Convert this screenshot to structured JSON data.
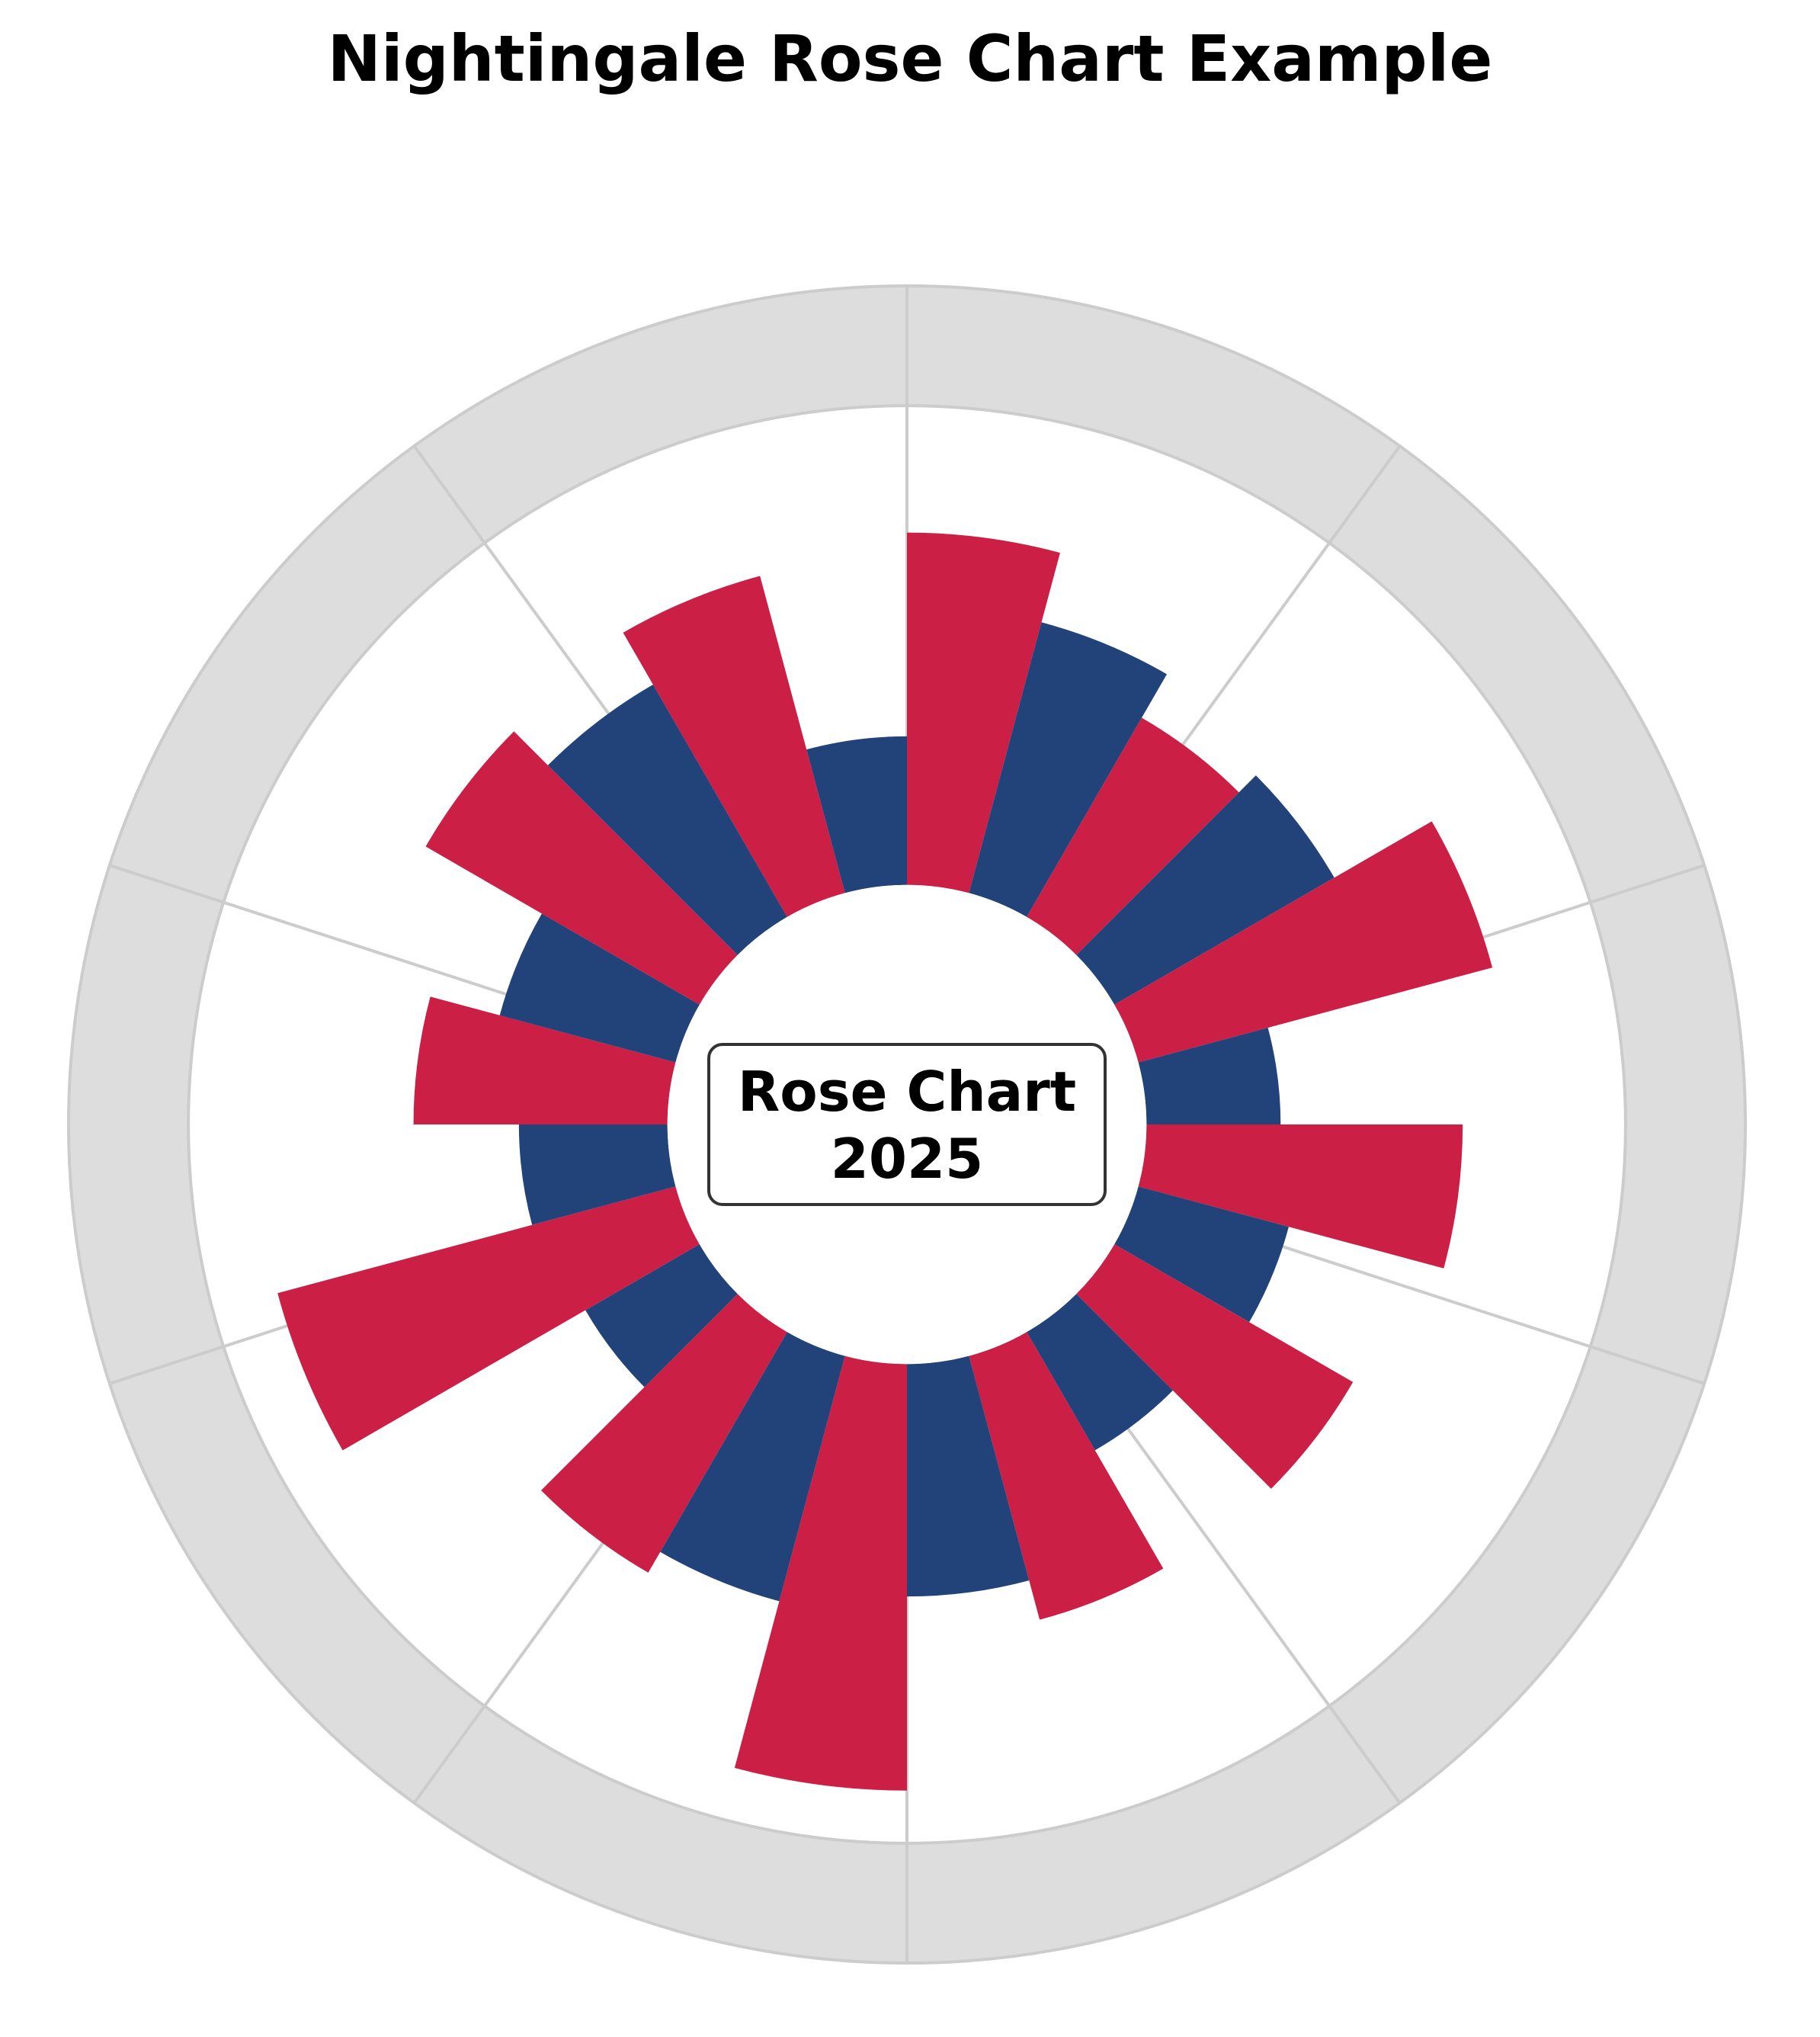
{
  "chart_data": {
    "type": "rose",
    "title": "Nightingale Rose Chart Example",
    "center_label": {
      "line1": "Rose Chart",
      "line2": "2025"
    },
    "sector_count": 24,
    "inner_radius": 1.0,
    "band_inner": 3.0,
    "band_outer": 3.5,
    "spoke_count": 10,
    "start_angle_deg": 0,
    "direction": "clockwise",
    "colors": {
      "red": "#CC1F45",
      "blue": "#22427A",
      "band": "#DCDDDC",
      "grid": "#CCCCCC",
      "label_box_edge": "#333333"
    },
    "sectors": [
      {
        "value": 2.47,
        "color": "red"
      },
      {
        "value": 2.17,
        "color": "blue"
      },
      {
        "value": 1.96,
        "color": "red"
      },
      {
        "value": 2.06,
        "color": "blue"
      },
      {
        "value": 2.53,
        "color": "red"
      },
      {
        "value": 1.56,
        "color": "blue"
      },
      {
        "value": 2.32,
        "color": "red"
      },
      {
        "value": 1.65,
        "color": "blue"
      },
      {
        "value": 2.15,
        "color": "red"
      },
      {
        "value": 1.57,
        "color": "blue"
      },
      {
        "value": 2.14,
        "color": "red"
      },
      {
        "value": 1.97,
        "color": "blue"
      },
      {
        "value": 2.78,
        "color": "red"
      },
      {
        "value": 2.06,
        "color": "blue"
      },
      {
        "value": 2.16,
        "color": "red"
      },
      {
        "value": 1.55,
        "color": "blue"
      },
      {
        "value": 2.72,
        "color": "red"
      },
      {
        "value": 1.62,
        "color": "blue"
      },
      {
        "value": 2.06,
        "color": "red"
      },
      {
        "value": 1.76,
        "color": "blue"
      },
      {
        "value": 2.32,
        "color": "red"
      },
      {
        "value": 2.12,
        "color": "blue"
      },
      {
        "value": 2.37,
        "color": "red"
      },
      {
        "value": 1.62,
        "color": "blue"
      }
    ]
  }
}
